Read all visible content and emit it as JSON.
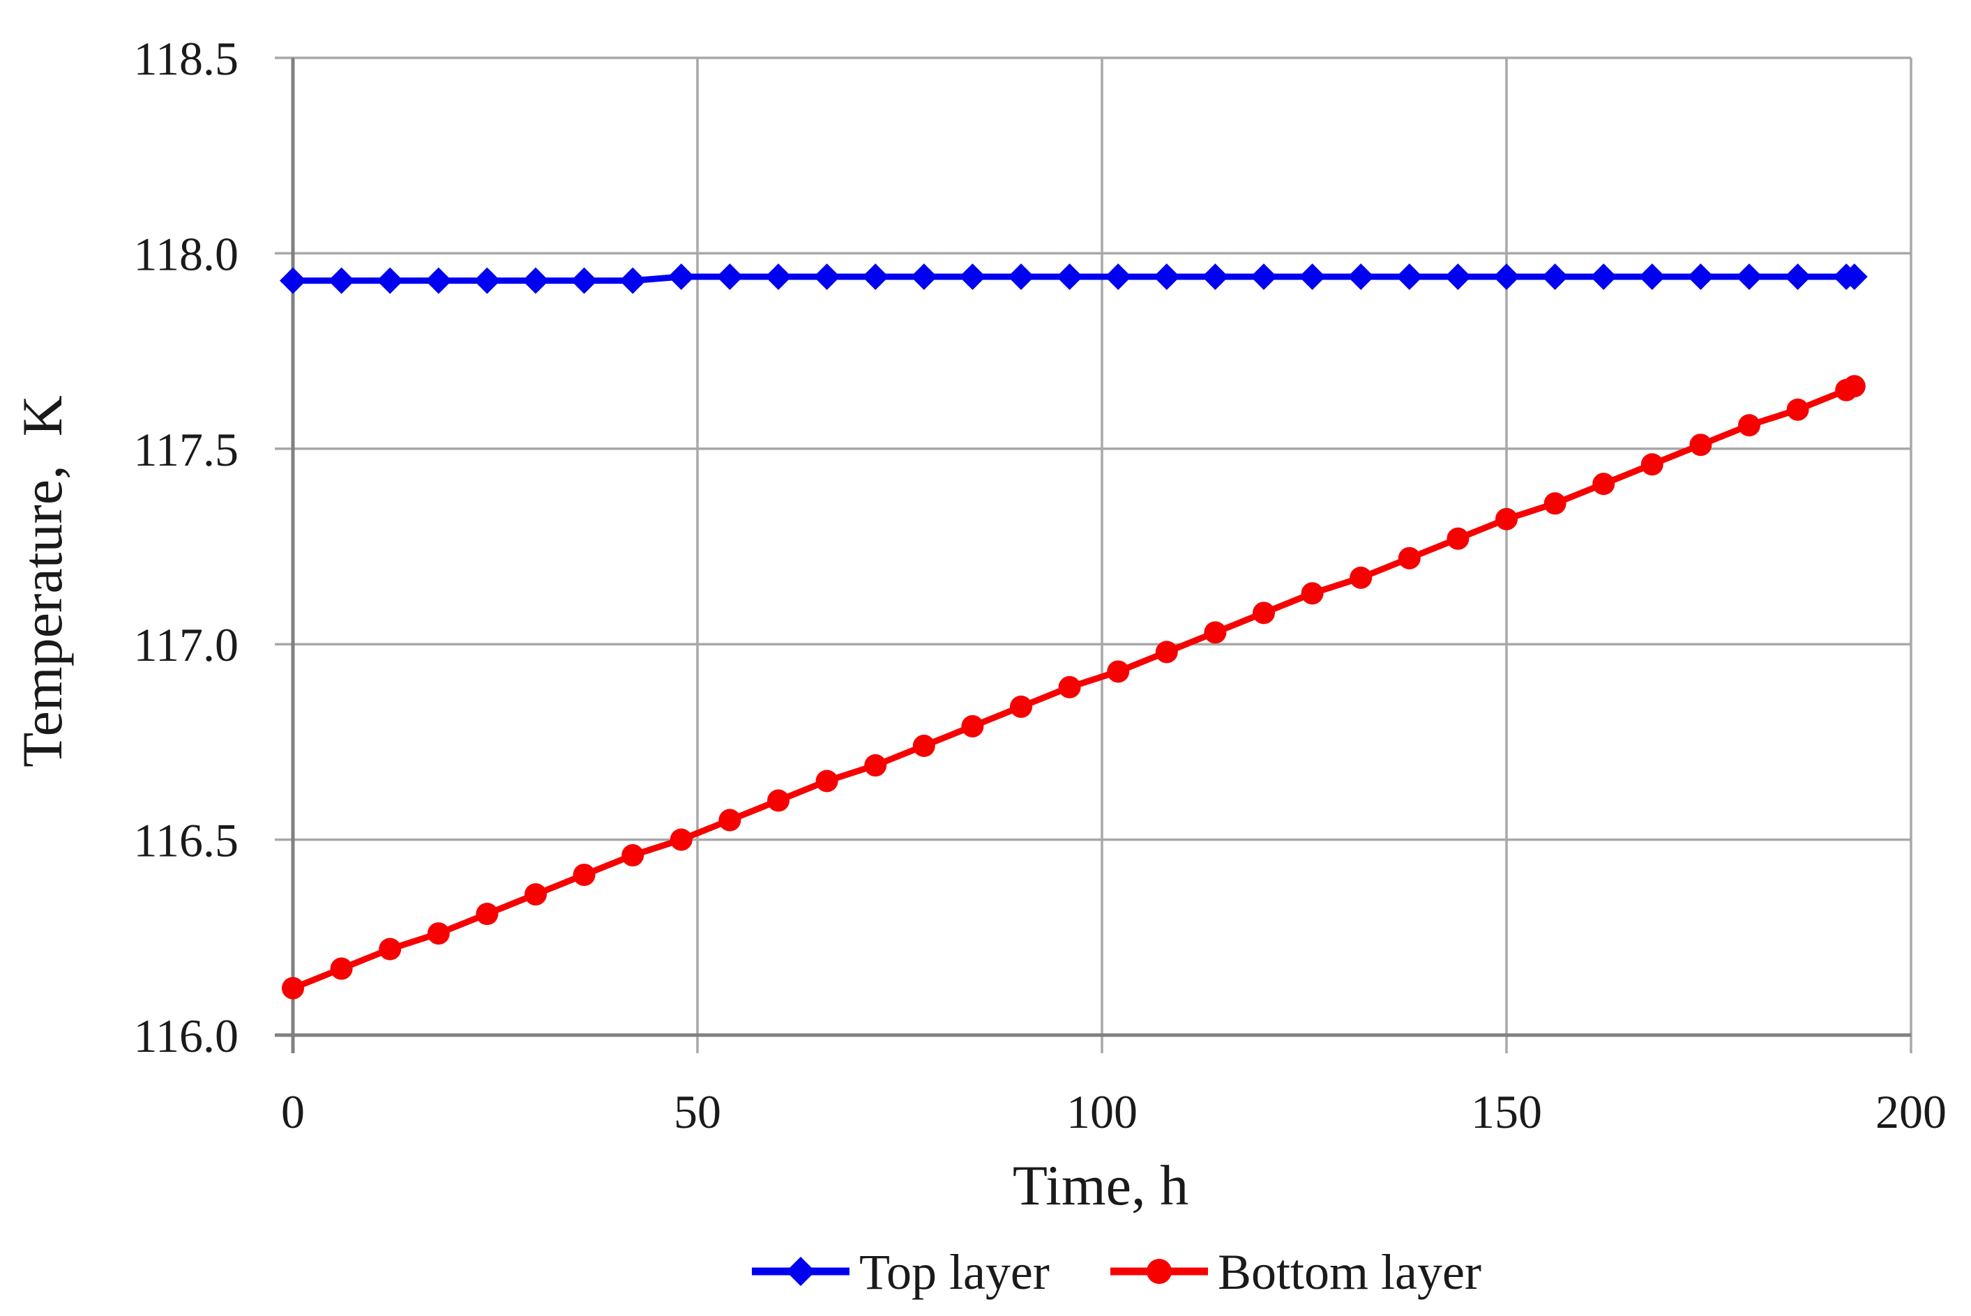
{
  "figure": {
    "background": "#ffffff",
    "kind": "scientific line chart"
  },
  "chart_data": {
    "type": "line",
    "title": "",
    "xlabel": "Time, h",
    "ylabel": "Temperature,  K",
    "xlim": [
      0,
      200
    ],
    "ylim": [
      116.0,
      118.5
    ],
    "x_ticks": [
      0,
      50,
      100,
      150,
      200
    ],
    "x_tick_labels": [
      "0",
      "50",
      "100",
      "150",
      "200"
    ],
    "y_ticks": [
      116.0,
      116.5,
      117.0,
      117.5,
      118.0,
      118.5
    ],
    "y_tick_labels": [
      "116.0",
      "116.5",
      "117.0",
      "117.5",
      "118.0",
      "118.5"
    ],
    "grid": true,
    "legend_position": "bottom-center",
    "colors": {
      "axis": "#808080",
      "grid": "#a8a8a8",
      "text": "#1a1a1a",
      "top_layer": "#0000f0",
      "bottom_layer": "#f70000"
    },
    "x": [
      0,
      6,
      12,
      18,
      24,
      30,
      36,
      42,
      48,
      54,
      60,
      66,
      72,
      78,
      84,
      90,
      96,
      102,
      108,
      114,
      120,
      126,
      132,
      138,
      144,
      150,
      156,
      162,
      168,
      174,
      180,
      186,
      192,
      193
    ],
    "series": [
      {
        "name": "Top layer",
        "color": "#0000f0",
        "marker": "diamond",
        "values": [
          117.93,
          117.93,
          117.93,
          117.93,
          117.93,
          117.93,
          117.93,
          117.93,
          117.94,
          117.94,
          117.94,
          117.94,
          117.94,
          117.94,
          117.94,
          117.94,
          117.94,
          117.94,
          117.94,
          117.94,
          117.94,
          117.94,
          117.94,
          117.94,
          117.94,
          117.94,
          117.94,
          117.94,
          117.94,
          117.94,
          117.94,
          117.94,
          117.94,
          117.94
        ]
      },
      {
        "name": "Bottom layer",
        "color": "#f70000",
        "marker": "circle",
        "values": [
          116.12,
          116.17,
          116.22,
          116.26,
          116.31,
          116.36,
          116.41,
          116.46,
          116.5,
          116.55,
          116.6,
          116.65,
          116.69,
          116.74,
          116.79,
          116.84,
          116.89,
          116.93,
          116.98,
          117.03,
          117.08,
          117.13,
          117.17,
          117.22,
          117.27,
          117.32,
          117.36,
          117.41,
          117.46,
          117.51,
          117.56,
          117.6,
          117.65,
          117.66
        ]
      }
    ],
    "legend": [
      {
        "label": "Top layer"
      },
      {
        "label": "Bottom layer"
      }
    ]
  }
}
